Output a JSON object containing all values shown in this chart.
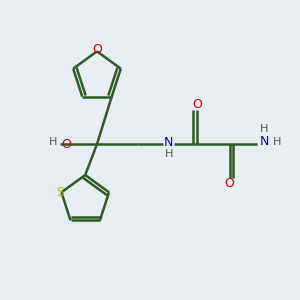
{
  "bg_color": "#e8edf1",
  "atom_colors": {
    "C": "#2d5a27",
    "O": "#cc0000",
    "N": "#0000cc",
    "S": "#b8b800",
    "H": "#555555"
  },
  "bond_color": "#2d5a27",
  "bond_width": 1.8,
  "figsize": [
    3.0,
    3.0
  ],
  "dpi": 100,
  "xlim": [
    0,
    10
  ],
  "ylim": [
    0,
    10
  ]
}
